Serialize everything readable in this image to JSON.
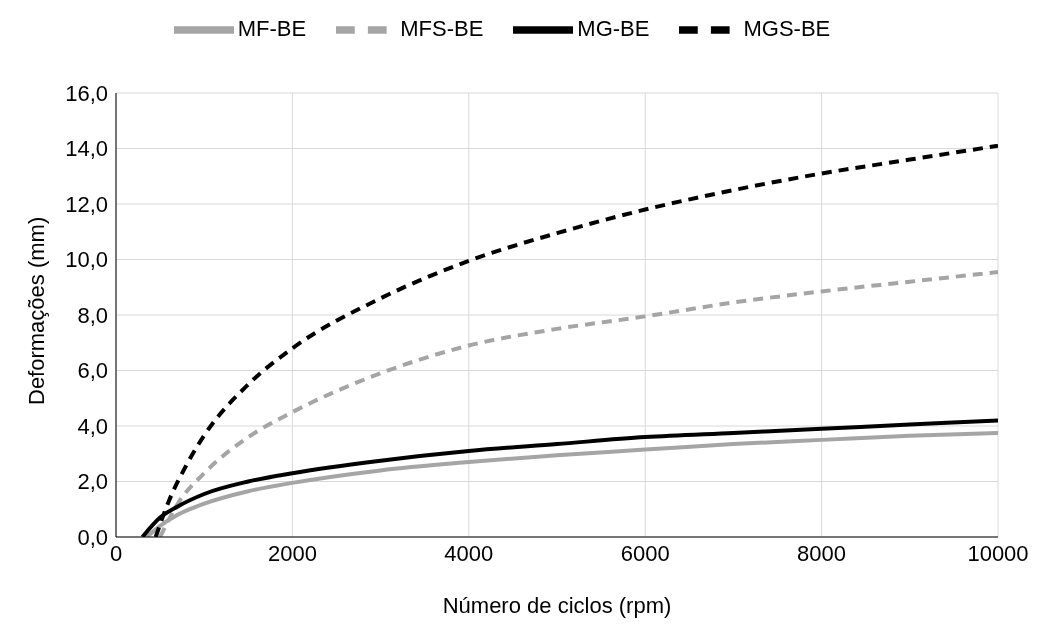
{
  "chart_data": {
    "type": "line",
    "xlabel": "Número de ciclos (rpm)",
    "ylabel": "Deformações (mm)",
    "xlim": [
      0,
      10000
    ],
    "xticks": [
      0,
      2000,
      4000,
      6000,
      8000,
      10000
    ],
    "ylim": [
      0,
      16
    ],
    "yticks": [
      {
        "value": 0,
        "label": "0,0"
      },
      {
        "value": 2,
        "label": "2,0"
      },
      {
        "value": 4,
        "label": "4,0"
      },
      {
        "value": 6,
        "label": "6,0"
      },
      {
        "value": 8,
        "label": "8,0"
      },
      {
        "value": 10,
        "label": "10,0"
      },
      {
        "value": 12,
        "label": "12,0"
      },
      {
        "value": 14,
        "label": "14,0"
      },
      {
        "value": 16,
        "label": "16,0"
      }
    ],
    "grid": true,
    "legend": "top",
    "marker": "none",
    "series": [
      {
        "name": "MF-BE",
        "color": "#a5a5a5",
        "line_style": "solid",
        "x": [
          350,
          500,
          700,
          1000,
          1500,
          2000,
          3000,
          4000,
          5000,
          6000,
          7000,
          8000,
          9000,
          10000
        ],
        "values": [
          0,
          0.4,
          0.8,
          1.2,
          1.65,
          1.95,
          2.4,
          2.7,
          2.95,
          3.15,
          3.35,
          3.5,
          3.65,
          3.75
        ]
      },
      {
        "name": "MFS-BE",
        "color": "#a5a5a5",
        "line_style": "dashed",
        "x": [
          500,
          700,
          1000,
          1500,
          2000,
          3000,
          4000,
          5000,
          6000,
          7000,
          8000,
          9000,
          10000
        ],
        "values": [
          0,
          1.2,
          2.3,
          3.6,
          4.5,
          5.9,
          6.9,
          7.5,
          7.95,
          8.45,
          8.85,
          9.2,
          9.55
        ]
      },
      {
        "name": "MG-BE",
        "color": "#000000",
        "line_style": "solid",
        "x": [
          300,
          500,
          700,
          1000,
          1500,
          2000,
          3000,
          4000,
          5000,
          6000,
          7000,
          8000,
          9000,
          10000
        ],
        "values": [
          0,
          0.7,
          1.1,
          1.55,
          2.0,
          2.3,
          2.75,
          3.1,
          3.35,
          3.6,
          3.75,
          3.9,
          4.05,
          4.2
        ]
      },
      {
        "name": "MGS-BE",
        "color": "#000000",
        "line_style": "dashed",
        "x": [
          450,
          600,
          800,
          1000,
          1500,
          2000,
          3000,
          4000,
          5000,
          6000,
          7000,
          8000,
          9000,
          10000
        ],
        "values": [
          0,
          1.3,
          2.6,
          3.66,
          5.5,
          6.8,
          8.6,
          9.95,
          10.95,
          11.8,
          12.5,
          13.1,
          13.6,
          14.1
        ]
      }
    ]
  }
}
